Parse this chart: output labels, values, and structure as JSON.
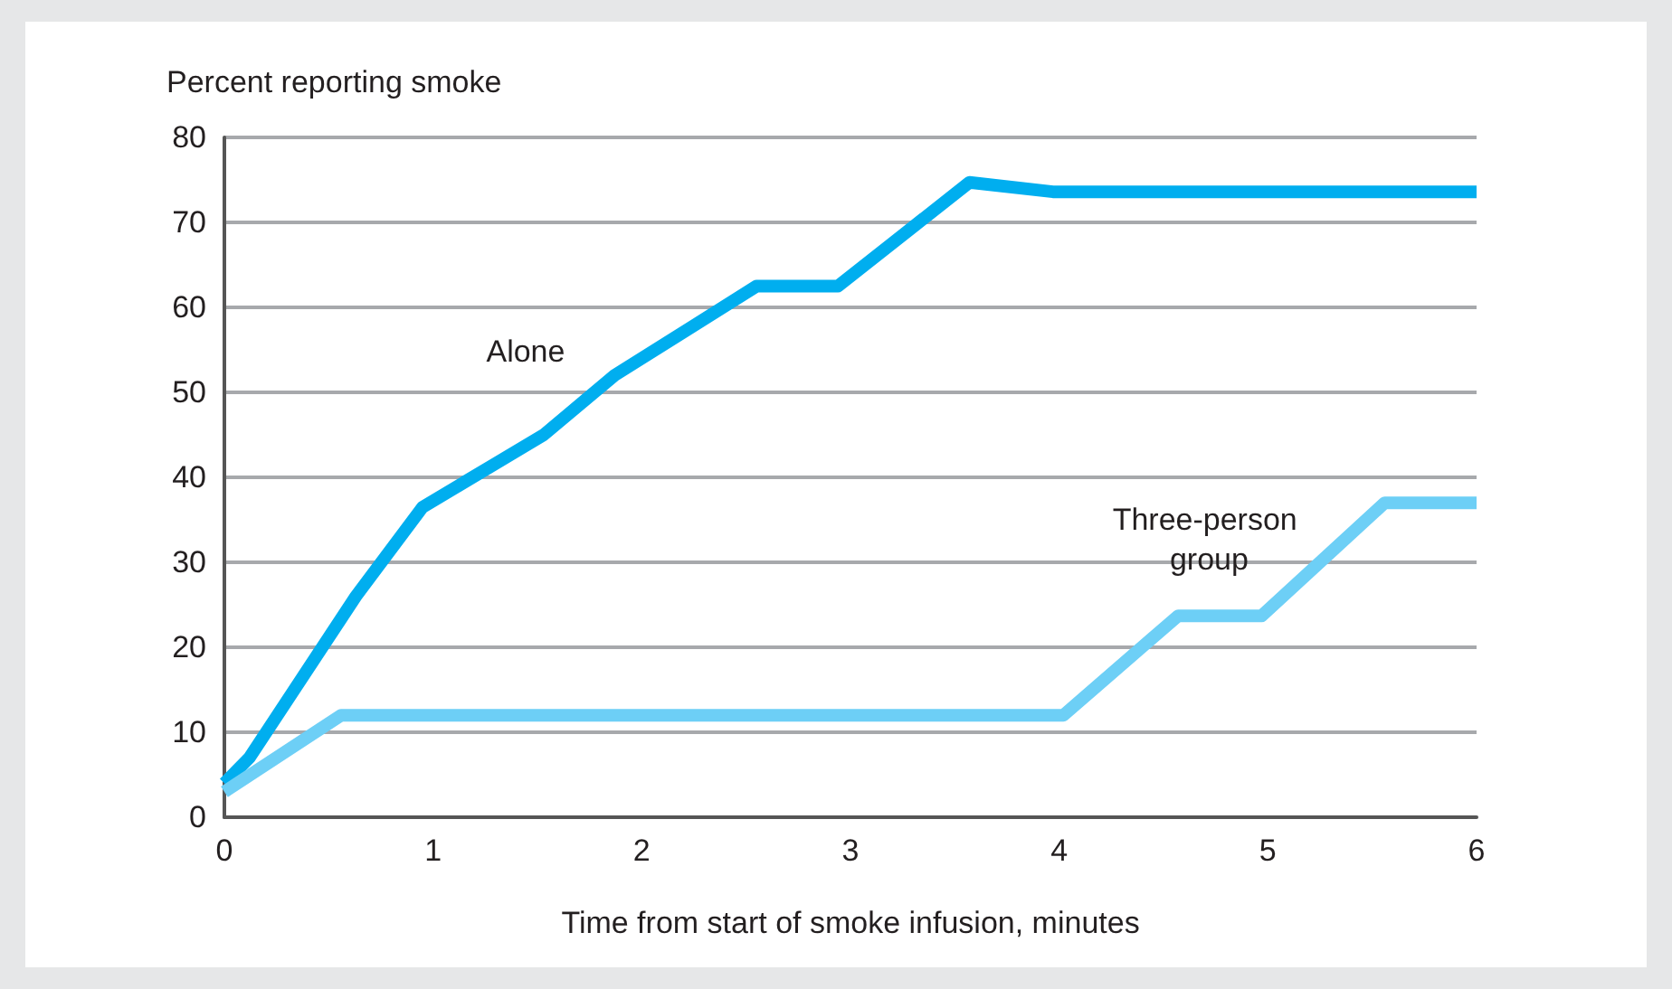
{
  "chart_data": {
    "type": "line",
    "ylabel": "Percent reporting smoke",
    "xlabel": "Time from start of smoke infusion, minutes",
    "series": [
      {
        "name": "Alone",
        "color": "#00aeef",
        "x": [
          0,
          0.12,
          0.63,
          0.95,
          1.53,
          1.87,
          2.55,
          2.94,
          3.57,
          3.97,
          6
        ],
        "values": [
          4,
          7,
          26,
          36.5,
          45,
          52,
          62.5,
          62.5,
          74.7,
          73.6,
          73.6
        ]
      },
      {
        "name": "Three-person group",
        "color": "#6dcff6",
        "x": [
          0,
          0.56,
          4.02,
          4.57,
          4.97,
          5.56,
          6
        ],
        "values": [
          3,
          12,
          12,
          23.7,
          23.7,
          37,
          37
        ]
      }
    ],
    "xlim": [
      0,
      6
    ],
    "xticks": [
      0,
      1,
      2,
      3,
      4,
      5,
      6
    ],
    "ylim": [
      0,
      80
    ],
    "yticks": [
      0,
      10,
      20,
      30,
      40,
      50,
      60,
      70,
      80
    ],
    "grid": "y",
    "legend": false,
    "marker": "none",
    "line_style": "solid"
  }
}
